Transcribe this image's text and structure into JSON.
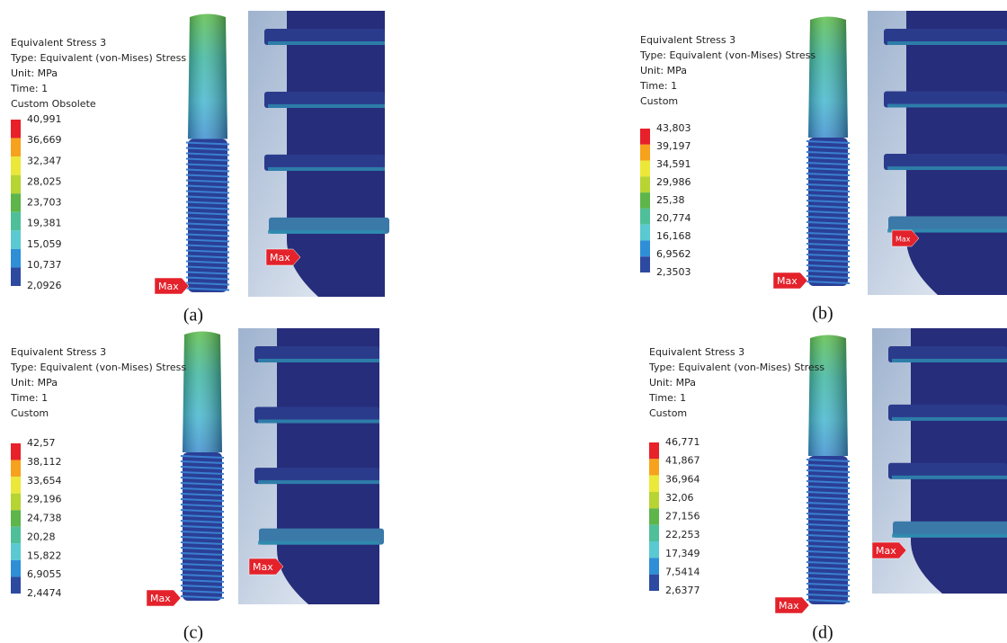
{
  "panels": [
    {
      "title_lines": [
        "Equivalent Stress 3",
        "Type: Equivalent (von-Mises) Stress",
        "Unit: MPa",
        "Time: 1",
        "Custom Obsolete"
      ],
      "legend_values": [
        "40,991",
        "36,669",
        "32,347",
        "28,025",
        "23,703",
        "19,381",
        "15,059",
        "10,737",
        "2,0926"
      ],
      "max_labels": [
        "Max",
        "Max"
      ],
      "caption": "(a)"
    },
    {
      "title_lines": [
        "Equivalent Stress 3",
        "Type: Equivalent (von-Mises) Stress",
        "Unit: MPa",
        "Time: 1",
        "Custom"
      ],
      "legend_values": [
        "43,803",
        "39,197",
        "34,591",
        "29,986",
        "25,38",
        "20,774",
        "16,168",
        "6,9562",
        "2,3503"
      ],
      "max_labels": [
        "Max",
        "Max"
      ],
      "caption": "(b)"
    },
    {
      "title_lines": [
        "Equivalent Stress 3",
        "Type: Equivalent (von-Mises) Stress",
        "Unit: MPa",
        "Time: 1",
        "Custom"
      ],
      "legend_values": [
        "42,57",
        "38,112",
        "33,654",
        "29,196",
        "24,738",
        "20,28",
        "15,822",
        "6,9055",
        "2,4474"
      ],
      "max_labels": [
        "Max",
        "Max"
      ],
      "caption": "(c)"
    },
    {
      "title_lines": [
        "Equivalent Stress 3",
        "Type: Equivalent (von-Mises) Stress",
        "Unit: MPa",
        "Time: 1",
        "Custom"
      ],
      "legend_values": [
        "46,771",
        "41,867",
        "36,964",
        "32,06",
        "27,156",
        "22,253",
        "17,349",
        "7,5414",
        "2,6377"
      ],
      "max_labels": [
        "Max",
        "Max"
      ],
      "caption": "(d)"
    }
  ]
}
